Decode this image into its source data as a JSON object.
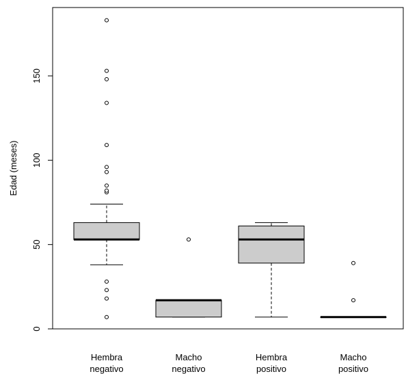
{
  "chart_data": {
    "type": "boxplot",
    "title": "",
    "xlabel": "",
    "ylabel": "Edad (meses)",
    "ylim": [
      0,
      185
    ],
    "yticks": [
      0,
      50,
      100,
      150
    ],
    "ytick_labels": [
      "0",
      "50",
      "100",
      "150"
    ],
    "grid": false,
    "box_fill": "#cccccc",
    "categories": [
      {
        "line1": "Hembra",
        "line2": "negativo"
      },
      {
        "line1": "Macho",
        "line2": "negativo"
      },
      {
        "line1": "Hembra",
        "line2": "positivo"
      },
      {
        "line1": "Macho",
        "line2": "positivo"
      }
    ],
    "boxes": [
      {
        "whisker_low": 38,
        "q1": 53,
        "median": 53,
        "q3": 63,
        "whisker_high": 74,
        "outliers": [
          7,
          18,
          23,
          28,
          81,
          82,
          85,
          93,
          96,
          109,
          134,
          148,
          153,
          183
        ]
      },
      {
        "whisker_low": 7,
        "q1": 7,
        "median": 17,
        "q3": 17,
        "whisker_high": 17,
        "outliers": [
          53
        ]
      },
      {
        "whisker_low": 7,
        "q1": 39,
        "median": 53,
        "q3": 61,
        "whisker_high": 63,
        "outliers": []
      },
      {
        "whisker_low": 7,
        "q1": 7,
        "median": 7,
        "q3": 7,
        "whisker_high": 7,
        "outliers": [
          17,
          39
        ]
      }
    ]
  }
}
